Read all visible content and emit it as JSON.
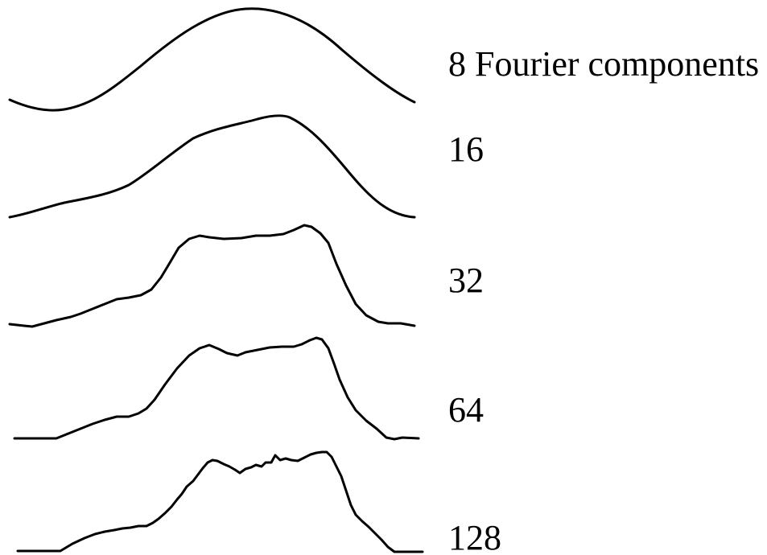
{
  "figure": {
    "line_color": "#000000",
    "background": "#ffffff",
    "curves": [
      {
        "label": "8 Fourier components"
      },
      {
        "label": "16"
      },
      {
        "label": "32"
      },
      {
        "label": "64"
      },
      {
        "label": "128"
      }
    ]
  }
}
